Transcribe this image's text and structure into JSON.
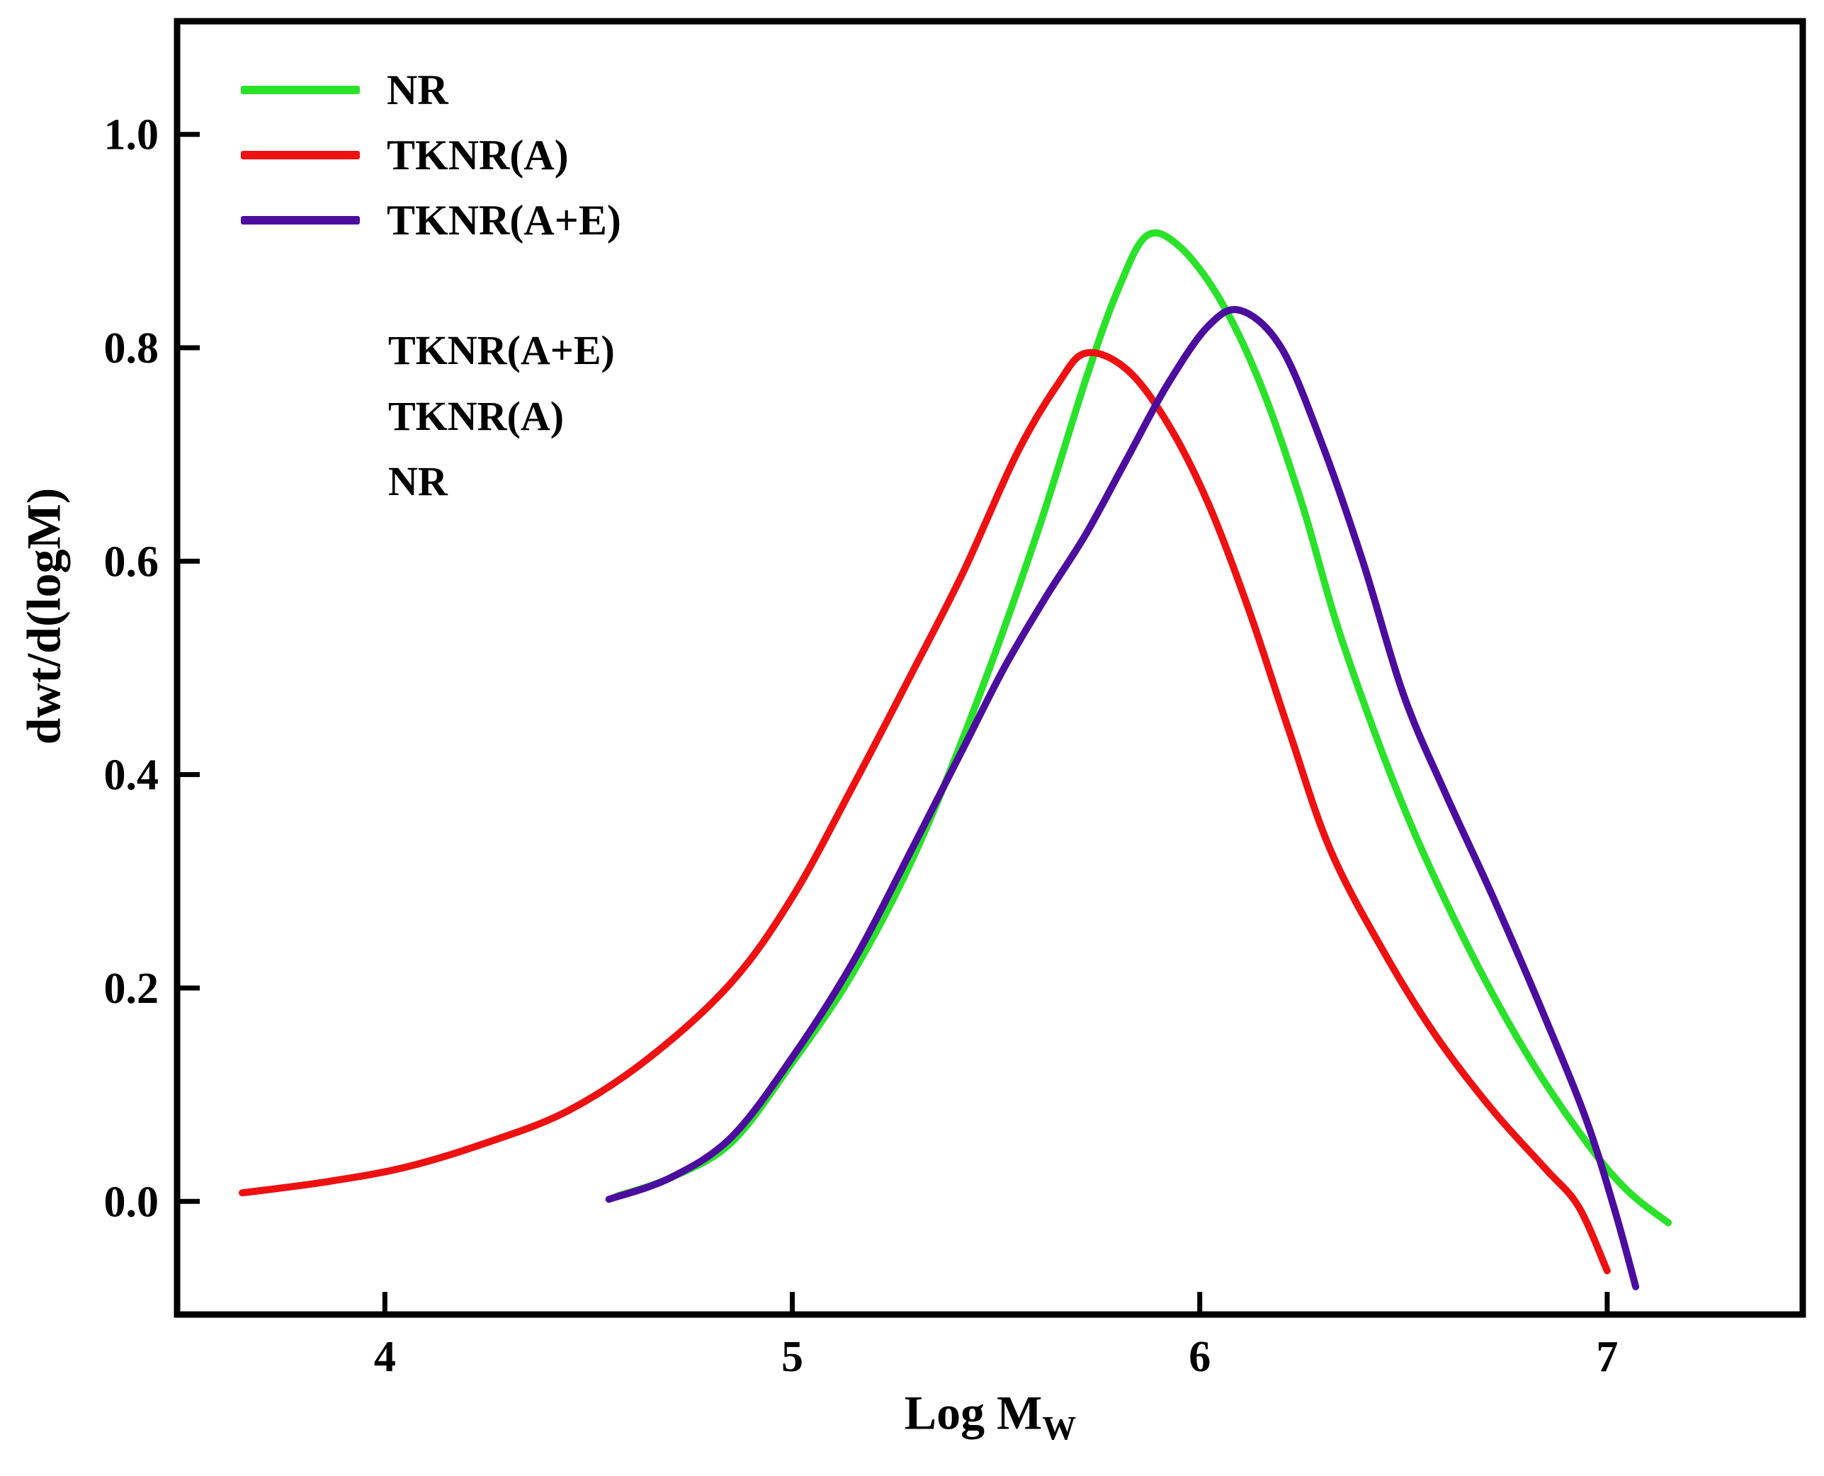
{
  "chart_data": {
    "type": "line",
    "title": "",
    "xlabel_main": "Log M",
    "xlabel_sub": "W",
    "ylabel": "dwt/d(logM)",
    "xlim": [
      3.49,
      7.48
    ],
    "ylim": [
      -0.106,
      1.106
    ],
    "grid": false,
    "legend_position": "top-left",
    "frame_color": "#000000",
    "x_ticks": {
      "values": [
        4,
        5,
        6,
        7
      ],
      "labels": [
        "4",
        "5",
        "6",
        "7"
      ]
    },
    "y_ticks": {
      "values": [
        0.0,
        0.2,
        0.4,
        0.6,
        0.8,
        1.0
      ],
      "labels": [
        "0.0",
        "0.2",
        "0.4",
        "0.6",
        "0.8",
        "1.0"
      ]
    },
    "series": [
      {
        "name": "NR",
        "color": "#2be22b",
        "points": [
          [
            4.57,
            0.005
          ],
          [
            4.7,
            0.022
          ],
          [
            4.85,
            0.055
          ],
          [
            5.0,
            0.13
          ],
          [
            5.15,
            0.215
          ],
          [
            5.3,
            0.325
          ],
          [
            5.45,
            0.465
          ],
          [
            5.6,
            0.625
          ],
          [
            5.72,
            0.77
          ],
          [
            5.8,
            0.855
          ],
          [
            5.87,
            0.905
          ],
          [
            5.95,
            0.895
          ],
          [
            6.05,
            0.845
          ],
          [
            6.15,
            0.765
          ],
          [
            6.25,
            0.655
          ],
          [
            6.35,
            0.525
          ],
          [
            6.5,
            0.37
          ],
          [
            6.65,
            0.245
          ],
          [
            6.8,
            0.14
          ],
          [
            6.95,
            0.055
          ],
          [
            7.05,
            0.01
          ],
          [
            7.15,
            -0.02
          ]
        ]
      },
      {
        "name": "TKNR(A)",
        "color": "#ee1111",
        "points": [
          [
            3.65,
            0.008
          ],
          [
            3.85,
            0.018
          ],
          [
            4.05,
            0.032
          ],
          [
            4.25,
            0.055
          ],
          [
            4.45,
            0.085
          ],
          [
            4.65,
            0.135
          ],
          [
            4.85,
            0.205
          ],
          [
            5.0,
            0.285
          ],
          [
            5.15,
            0.39
          ],
          [
            5.3,
            0.5
          ],
          [
            5.42,
            0.59
          ],
          [
            5.55,
            0.7
          ],
          [
            5.65,
            0.765
          ],
          [
            5.72,
            0.795
          ],
          [
            5.82,
            0.78
          ],
          [
            5.92,
            0.73
          ],
          [
            6.02,
            0.655
          ],
          [
            6.12,
            0.555
          ],
          [
            6.22,
            0.44
          ],
          [
            6.32,
            0.33
          ],
          [
            6.45,
            0.235
          ],
          [
            6.58,
            0.155
          ],
          [
            6.72,
            0.085
          ],
          [
            6.85,
            0.03
          ],
          [
            6.93,
            -0.005
          ],
          [
            7.0,
            -0.065
          ]
        ]
      },
      {
        "name": "TKNR(A+E)",
        "color": "#4c0d9f",
        "points": [
          [
            4.55,
            0.002
          ],
          [
            4.7,
            0.022
          ],
          [
            4.85,
            0.06
          ],
          [
            5.0,
            0.135
          ],
          [
            5.15,
            0.225
          ],
          [
            5.3,
            0.335
          ],
          [
            5.42,
            0.425
          ],
          [
            5.52,
            0.5
          ],
          [
            5.62,
            0.565
          ],
          [
            5.72,
            0.625
          ],
          [
            5.82,
            0.695
          ],
          [
            5.92,
            0.765
          ],
          [
            6.02,
            0.82
          ],
          [
            6.1,
            0.835
          ],
          [
            6.2,
            0.8
          ],
          [
            6.3,
            0.71
          ],
          [
            6.4,
            0.6
          ],
          [
            6.5,
            0.475
          ],
          [
            6.6,
            0.385
          ],
          [
            6.72,
            0.285
          ],
          [
            6.85,
            0.17
          ],
          [
            6.95,
            0.075
          ],
          [
            7.02,
            -0.01
          ],
          [
            7.07,
            -0.08
          ]
        ]
      }
    ],
    "annotations": [
      "TKNR(A+E)",
      "TKNR(A)",
      "NR"
    ]
  }
}
